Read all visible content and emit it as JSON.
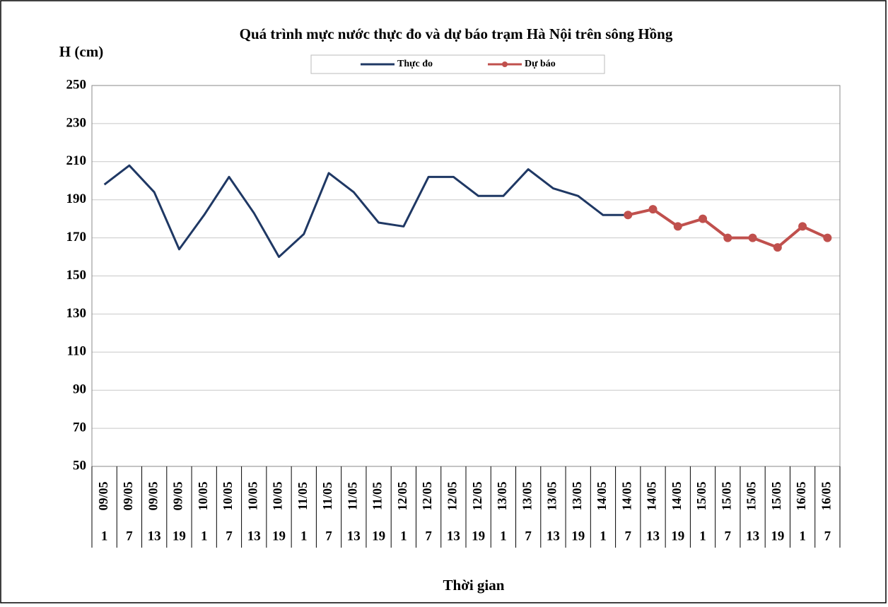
{
  "chart_data": {
    "type": "line",
    "title": "Quá trình mực nước thực đo và dự báo trạm Hà Nội trên sông Hồng",
    "y_label": "H (cm)",
    "x_label": "Thời gian",
    "categories": [
      "09/05",
      "09/05",
      "09/05",
      "09/05",
      "10/05",
      "10/05",
      "10/05",
      "10/05",
      "11/05",
      "11/05",
      "11/05",
      "11/05",
      "12/05",
      "12/05",
      "12/05",
      "12/05",
      "13/05",
      "13/05",
      "13/05",
      "13/05",
      "14/05",
      "14/05",
      "14/05",
      "14/05",
      "15/05",
      "15/05",
      "15/05",
      "15/05",
      "16/05",
      "16/05"
    ],
    "subcategories": [
      "1",
      "7",
      "13",
      "19",
      "1",
      "7",
      "13",
      "19",
      "1",
      "7",
      "13",
      "19",
      "1",
      "7",
      "13",
      "19",
      "1",
      "7",
      "13",
      "19",
      "1",
      "7",
      "13",
      "19",
      "1",
      "7",
      "13",
      "19",
      "1",
      "7"
    ],
    "series": [
      {
        "name": "Thực đo",
        "color": "#1f3864",
        "markers": false,
        "values": [
          198,
          208,
          194,
          164,
          182,
          202,
          183,
          160,
          172,
          204,
          194,
          178,
          176,
          202,
          202,
          192,
          192,
          206,
          196,
          192,
          182,
          182,
          null,
          null,
          null,
          null,
          null,
          null,
          null,
          null
        ]
      },
      {
        "name": "Dự báo",
        "color": "#c0504d",
        "markers": true,
        "values": [
          null,
          null,
          null,
          null,
          null,
          null,
          null,
          null,
          null,
          null,
          null,
          null,
          null,
          null,
          null,
          null,
          null,
          null,
          null,
          null,
          null,
          182,
          185,
          176,
          180,
          170,
          170,
          165,
          176,
          170
        ]
      }
    ],
    "ylim": [
      50,
      250
    ],
    "yticks": [
      50,
      70,
      90,
      110,
      130,
      150,
      170,
      190,
      210,
      230,
      250
    ],
    "grid": true
  }
}
